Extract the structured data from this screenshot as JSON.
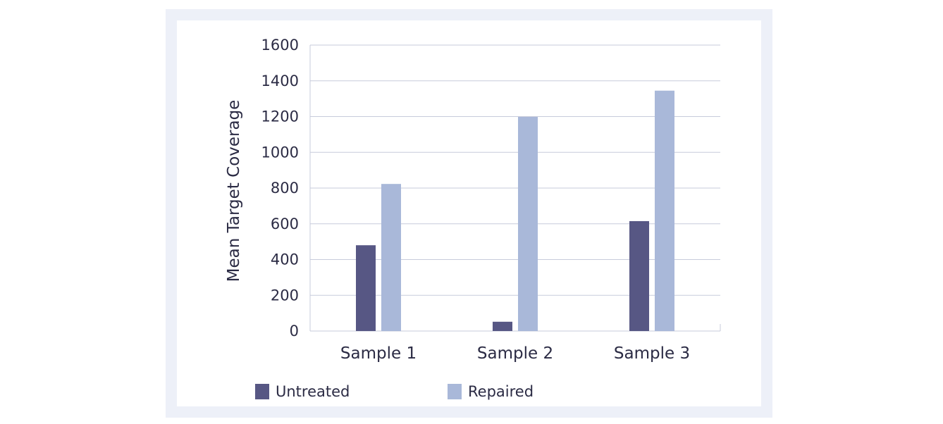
{
  "chart_data": {
    "type": "bar",
    "title": "",
    "xlabel": "",
    "ylabel": "Mean Target Coverage",
    "ylim": [
      0,
      1600
    ],
    "yticks": [
      0,
      200,
      400,
      600,
      800,
      1000,
      1200,
      1400,
      1600
    ],
    "grid": true,
    "legend_position": "bottom",
    "categories": [
      "Sample 1",
      "Sample 2",
      "Sample 3"
    ],
    "series": [
      {
        "name": "Untreated",
        "color": "#575784",
        "values": [
          480,
          52,
          615
        ]
      },
      {
        "name": "Repaired",
        "color": "#a9b8d9",
        "values": [
          823,
          1198,
          1345
        ]
      }
    ]
  }
}
